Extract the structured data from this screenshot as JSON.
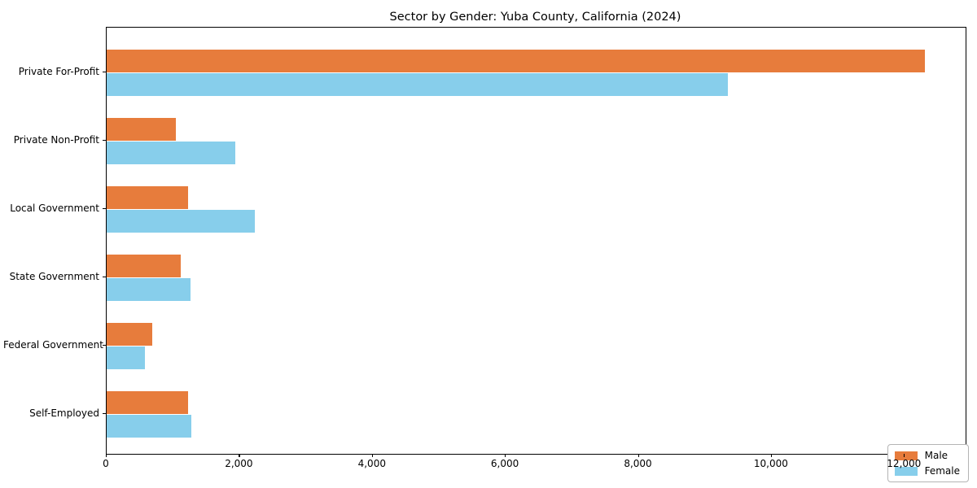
{
  "title": "Sector by Gender: Yuba County, California (2024)",
  "chart_data": {
    "type": "bar",
    "orientation": "horizontal",
    "title": "Sector by Gender: Yuba County, California (2024)",
    "xlabel": "",
    "ylabel": "",
    "categories": [
      "Private For-Profit",
      "Private Non-Profit",
      "Local Government",
      "State Government",
      "Federal Government",
      "Self-Employed"
    ],
    "series": [
      {
        "name": "Male",
        "color": "#e77c3c",
        "values": [
          12300,
          1040,
          1225,
          1110,
          690,
          1225
        ]
      },
      {
        "name": "Female",
        "color": "#87ceeb",
        "values": [
          9340,
          1930,
          2230,
          1260,
          575,
          1270
        ]
      }
    ],
    "xlim": [
      0,
      12915
    ],
    "xticks": [
      0,
      2000,
      4000,
      6000,
      8000,
      10000,
      12000
    ],
    "xtick_labels": [
      "0",
      "2,000",
      "4,000",
      "6,000",
      "8,000",
      "10,000",
      "12,000"
    ],
    "grid": false,
    "legend": {
      "position": "lower right",
      "labels": [
        "Male",
        "Female"
      ]
    }
  },
  "colors": {
    "background": "#ffffff",
    "axis": "#000000",
    "male": "#e77c3c",
    "female": "#87ceeb",
    "legend_border": "#b4b4b4"
  }
}
